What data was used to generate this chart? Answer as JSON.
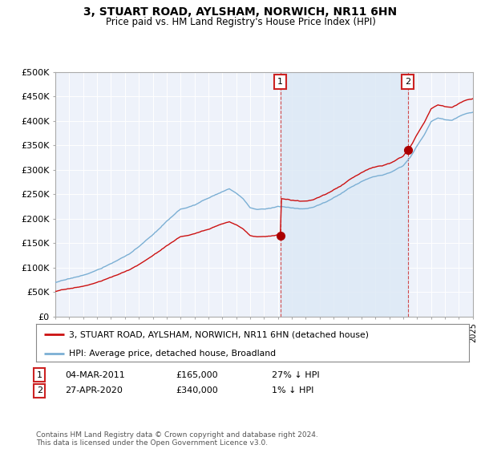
{
  "title": "3, STUART ROAD, AYLSHAM, NORWICH, NR11 6HN",
  "subtitle": "Price paid vs. HM Land Registry's House Price Index (HPI)",
  "ylim": [
    0,
    500000
  ],
  "yticks": [
    0,
    50000,
    100000,
    150000,
    200000,
    250000,
    300000,
    350000,
    400000,
    450000,
    500000
  ],
  "ytick_labels": [
    "£0",
    "£50K",
    "£100K",
    "£150K",
    "£200K",
    "£250K",
    "£300K",
    "£350K",
    "£400K",
    "£450K",
    "£500K"
  ],
  "hpi_color": "#7bafd4",
  "hpi_fill_color": "#dce8f5",
  "sale_color": "#cc1111",
  "marker_color": "#aa0000",
  "sale1_year": 2011.17,
  "sale1_price": 165000,
  "sale2_year": 2020.32,
  "sale2_price": 340000,
  "legend_sale": "3, STUART ROAD, AYLSHAM, NORWICH, NR11 6HN (detached house)",
  "legend_hpi": "HPI: Average price, detached house, Broadland",
  "table_rows": [
    [
      "1",
      "04-MAR-2011",
      "£165,000",
      "27% ↓ HPI"
    ],
    [
      "2",
      "27-APR-2020",
      "£340,000",
      "1% ↓ HPI"
    ]
  ],
  "footnote": "Contains HM Land Registry data © Crown copyright and database right 2024.\nThis data is licensed under the Open Government Licence v3.0.",
  "background_color": "#ffffff",
  "plot_bg_color": "#eef2fa"
}
